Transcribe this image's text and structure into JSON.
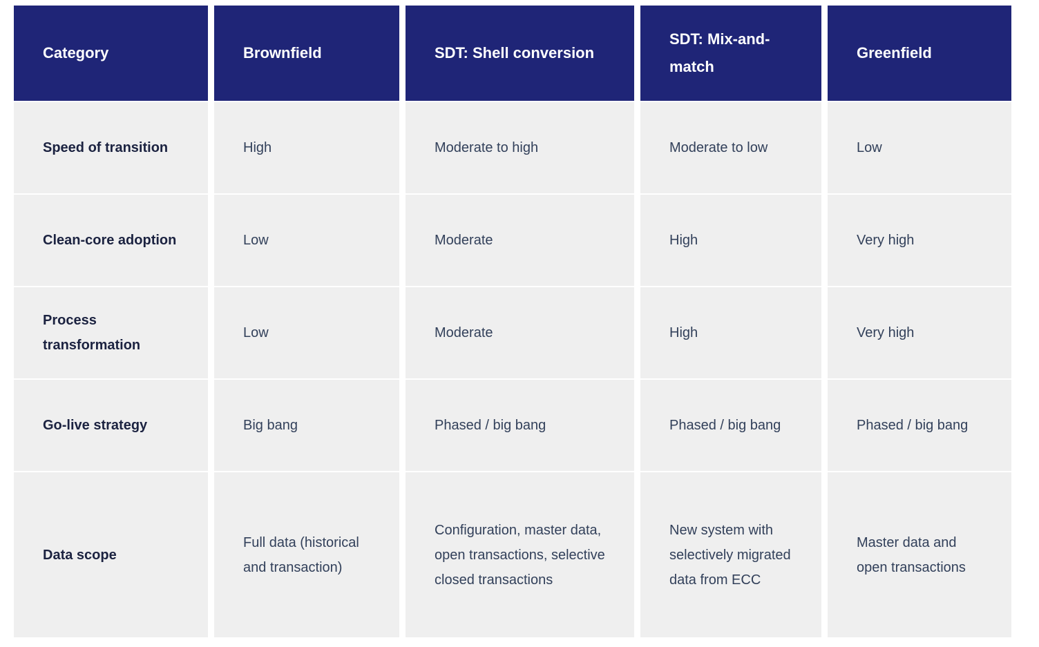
{
  "colors": {
    "header_bg": "#1f2577",
    "cell_bg": "#efefef",
    "header_text": "#ffffff",
    "body_text": "#32405a",
    "label_text": "#1b2240"
  },
  "table": {
    "headers": [
      "Category",
      "Brownfield",
      "SDT: Shell conversion",
      "SDT: Mix-and-match",
      "Greenfield"
    ],
    "rows": [
      {
        "label": "Speed of transition",
        "cells": [
          "High",
          "Moderate to high",
          "Moderate to low",
          "Low"
        ]
      },
      {
        "label": "Clean-core adoption",
        "cells": [
          "Low",
          "Moderate",
          "High",
          "Very high"
        ]
      },
      {
        "label": "Process transformation",
        "cells": [
          "Low",
          "Moderate",
          "High",
          "Very high"
        ]
      },
      {
        "label": "Go-live strategy",
        "cells": [
          "Big bang",
          "Phased / big bang",
          "Phased / big bang",
          "Phased / big bang"
        ]
      },
      {
        "label": "Data scope",
        "cells": [
          "Full data (historical and transaction)",
          "Configuration, master data, open transactions, selective closed transactions",
          "New system with selectively migrated data from ECC",
          "Master data and open transactions"
        ]
      }
    ]
  },
  "chart_data": {
    "type": "table",
    "title": "",
    "columns": [
      "Category",
      "Brownfield",
      "SDT: Shell conversion",
      "SDT: Mix-and-match",
      "Greenfield"
    ],
    "rows": [
      [
        "Speed of transition",
        "High",
        "Moderate to high",
        "Moderate to low",
        "Low"
      ],
      [
        "Clean-core adoption",
        "Low",
        "Moderate",
        "High",
        "Very high"
      ],
      [
        "Process transformation",
        "Low",
        "Moderate",
        "High",
        "Very high"
      ],
      [
        "Go-live strategy",
        "Big bang",
        "Phased / big bang",
        "Phased / big bang",
        "Phased / big bang"
      ],
      [
        "Data scope",
        "Full data (historical and transaction)",
        "Configuration, master data, open transactions, selective closed transactions",
        "New system with selectively migrated data from ECC",
        "Master data and open transactions"
      ]
    ]
  }
}
